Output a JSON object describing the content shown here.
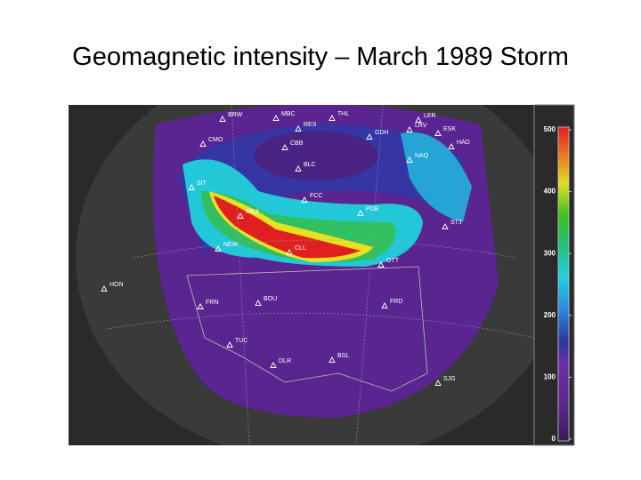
{
  "title": "Geomagnetic intensity – March 1989 Storm",
  "stations": [
    "BRW",
    "MBC",
    "RES",
    "THL",
    "LER",
    "LRV",
    "ESK",
    "HAD",
    "CMO",
    "CBB",
    "GDH",
    "NAQ",
    "BLC",
    "SIT",
    "FCC",
    "PDB",
    "STJ",
    "MEA",
    "NEW",
    "CLL",
    "OTT",
    "HON",
    "FRN",
    "BOU",
    "FRD",
    "TUC",
    "BSL",
    "DLR",
    "SJG"
  ],
  "colorbar": {
    "ticks": [
      500,
      400,
      300,
      200,
      100,
      0
    ]
  }
}
